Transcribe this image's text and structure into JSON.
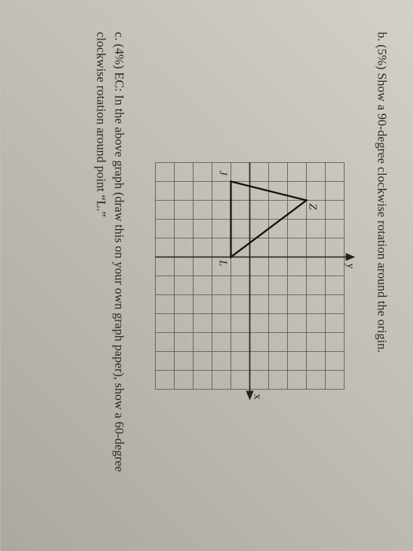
{
  "questions": {
    "b": {
      "label": "b.",
      "text": "(5%) Show a 90-degree clockwise rotation around the origin."
    },
    "c": {
      "label": "c.",
      "text": "(4%) EC: In the above graph (draw this on your own graph paper), show a 60-degree clockwise rotation around point “L.”"
    }
  },
  "graph": {
    "type": "grid-with-triangle",
    "grid": {
      "cols": 12,
      "rows": 10,
      "cell": 24
    },
    "axes": {
      "x_label": "x",
      "y_label": "y",
      "origin_col": 5,
      "origin_row": 5
    },
    "triangle": {
      "vertices": {
        "Z": {
          "col": 2,
          "row": 2,
          "label": "Z"
        },
        "J": {
          "col": 1,
          "row": 6,
          "label": "J"
        },
        "L": {
          "col": 5,
          "row": 6,
          "label": "L"
        }
      }
    },
    "colors": {
      "grid": "#555555",
      "axis": "#222222",
      "triangle": "#111111",
      "background": "#c8c4bd"
    },
    "stroke_widths": {
      "grid": 0.8,
      "axis": 1.6,
      "triangle": 2.2
    }
  }
}
